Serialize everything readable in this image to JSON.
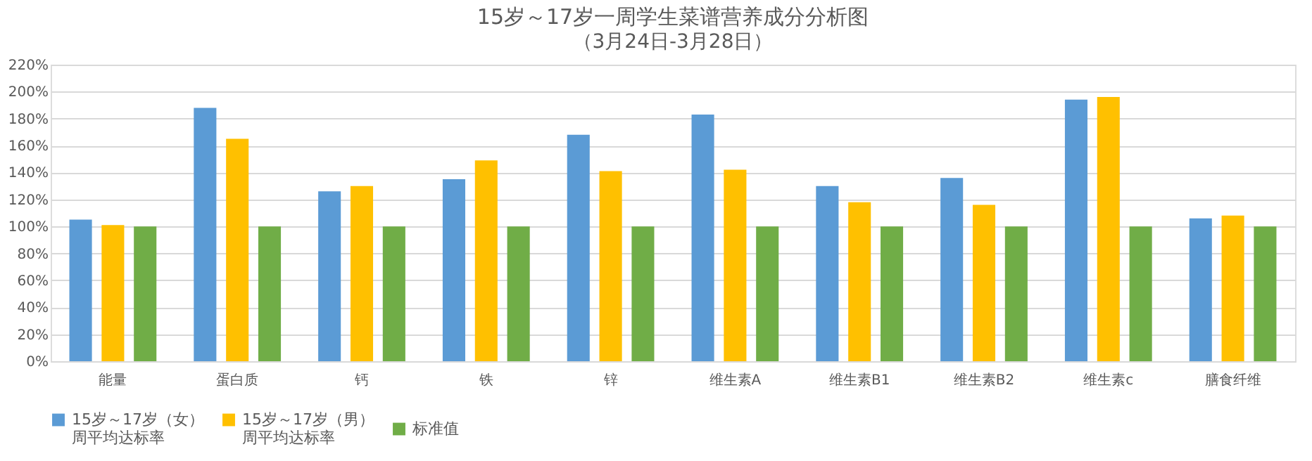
{
  "chart_data": {
    "type": "bar",
    "title": "15岁～17岁一周学生菜谱营养成分分析图",
    "subtitle": "（3月24日-3月28日）",
    "categories": [
      "能量",
      "蛋白质",
      "钙",
      "铁",
      "锌",
      "维生素A",
      "维生素B1",
      "维生素B2",
      "维生素c",
      "膳食纤维"
    ],
    "series": [
      {
        "name": "15岁～17岁（女）周平均达标率",
        "color": "#5b9bd5",
        "values": [
          105,
          188,
          126,
          135,
          168,
          183,
          130,
          136,
          194,
          106
        ]
      },
      {
        "name": "15岁～17岁（男）周平均达标率",
        "color": "#ffc000",
        "values": [
          101,
          165,
          130,
          149,
          141,
          142,
          118,
          116,
          196,
          108
        ]
      },
      {
        "name": "标准值",
        "color": "#70ad47",
        "values": [
          100,
          100,
          100,
          100,
          100,
          100,
          100,
          100,
          100,
          100
        ]
      }
    ],
    "ylim": [
      0,
      220
    ],
    "yticks": [
      {
        "value": 0,
        "label": "0%"
      },
      {
        "value": 20,
        "label": "20%"
      },
      {
        "value": 40,
        "label": "40%"
      },
      {
        "value": 60,
        "label": "60%"
      },
      {
        "value": 80,
        "label": "80%"
      },
      {
        "value": 100,
        "label": "100%"
      },
      {
        "value": 120,
        "label": "120%"
      },
      {
        "value": 140,
        "label": "140%"
      },
      {
        "value": 160,
        "label": "160%"
      },
      {
        "value": 180,
        "label": "180%"
      },
      {
        "value": 200,
        "label": "200%"
      },
      {
        "value": 220,
        "label": "220%"
      }
    ],
    "grid": "y",
    "legend": "bottom"
  }
}
